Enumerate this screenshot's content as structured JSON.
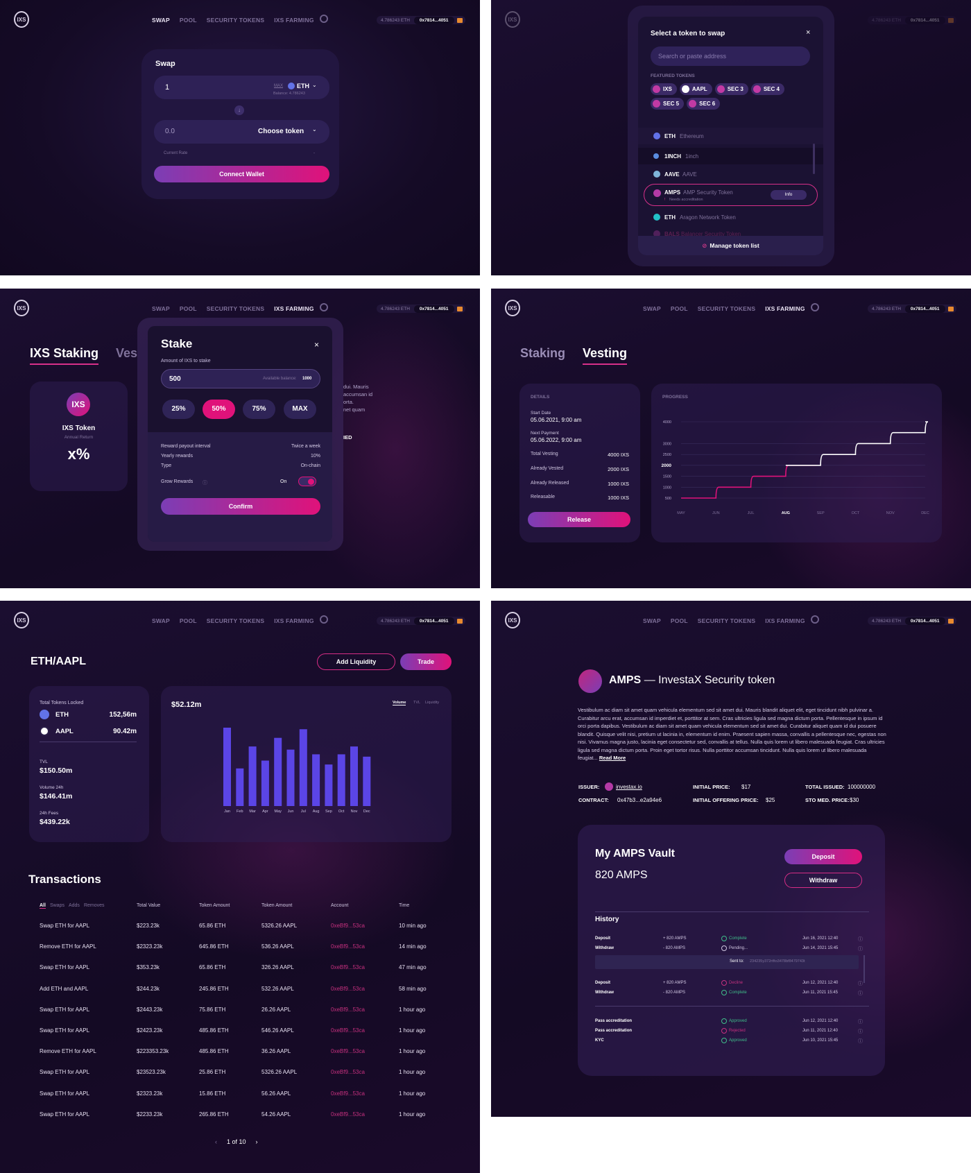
{
  "header": {
    "logo": "IXS",
    "nav": [
      "SWAP",
      "POOL",
      "SECURITY TOKENS",
      "IXS FARMING"
    ],
    "balance": "4.786243 ETH",
    "address": "0x7814...4051"
  },
  "swap": {
    "title": "Swap",
    "from_value": "1",
    "max_label": "MAX",
    "from_token": "ETH",
    "balance": "Balance: 4.786243",
    "to_value": "0.0",
    "choose_token": "Choose token",
    "current_rate": "Current Rate",
    "rate_value": "-",
    "connect": "Connect Wallet"
  },
  "token_select": {
    "title": "Select a token to swap",
    "search_placeholder": "Search or paste address",
    "featured_label": "FEATURED TOKENS",
    "featured": [
      "IXS",
      "AAPL",
      "SEC 3",
      "SEC 4",
      "SEC 5",
      "SEC 6"
    ],
    "tokens": [
      {
        "symbol": "ETH",
        "name": "Ethereum"
      },
      {
        "symbol": "1INCH",
        "name": "1inch"
      },
      {
        "symbol": "AAVE",
        "name": "AAVE"
      },
      {
        "symbol": "AMPS",
        "name": "AMP Security Token"
      },
      {
        "symbol": "ETH",
        "name": "Aragon Network Token"
      },
      {
        "symbol": "BALS",
        "name": "Balancer Security Token"
      }
    ],
    "accreditation": "Needs accreditation",
    "info_button": "Info",
    "manage": "Manage token list"
  },
  "staking": {
    "tab_staking": "IXS Staking",
    "tab_vesting_cut": "Ves",
    "token_name": "IXS Token",
    "annual_return": "Annual Return",
    "return_value": "x%",
    "bg_text": [
      "dui. Mauris",
      "accumsan id",
      "orta.",
      "net quam",
      "IED"
    ],
    "stake_title": "Stake",
    "amount_label": "Amount of IXS to stake",
    "amount_value": "500",
    "available_label": "Available balance:",
    "available_value": "1000",
    "percents": [
      "25%",
      "50%",
      "75%",
      "MAX"
    ],
    "details": [
      {
        "label": "Reward payout interval",
        "value": "Twice a week"
      },
      {
        "label": "Yearly rewards",
        "value": "10%"
      },
      {
        "label": "Type",
        "value": "On-chain"
      }
    ],
    "grow_label": "Grow Rewards",
    "grow_state": "On",
    "confirm": "Confirm"
  },
  "vesting": {
    "tab_staking": "Staking",
    "tab_vesting": "Vesting",
    "details_title": "DETAILS",
    "start_label": "Start Date",
    "start_value": "05.06.2021, 9:00 am",
    "next_label": "Next Payment",
    "next_value": "05.06.2022, 9:00 am",
    "rows": [
      {
        "label": "Total Vesting",
        "value": "4000 IXS"
      },
      {
        "label": "Already Vested",
        "value": "2000 IXS"
      },
      {
        "label": "Already Released",
        "value": "1000 IXS"
      },
      {
        "label": "Releasable",
        "value": "1000 IXS"
      }
    ],
    "release": "Release",
    "progress_title": "PROGRESS",
    "chart_data": {
      "type": "line",
      "x": [
        "MAY",
        "JUN",
        "JUL",
        "AUG",
        "SEP",
        "OCT",
        "NOV",
        "DEC"
      ],
      "y": [
        500,
        1000,
        1500,
        2000,
        2500,
        3000,
        3500,
        4000
      ],
      "yticks": [
        "4000",
        "3000",
        "2500",
        "2000",
        "1500",
        "1000",
        "500"
      ],
      "highlight_x": "AUG",
      "highlight_y": "2000",
      "ylim": [
        500,
        4000
      ]
    }
  },
  "pool": {
    "pair": "ETH/AAPL",
    "add_liquidity": "Add Liquidity",
    "trade": "Trade",
    "total_locked": "Total Tokens Locked",
    "locked": [
      {
        "token": "ETH",
        "value": "152,56m"
      },
      {
        "token": "AAPL",
        "value": "90.42m"
      }
    ],
    "tvl_label": "TVL",
    "tvl_value": "$150.50m",
    "vol_label": "Volume 24h",
    "vol_value": "$146.41m",
    "fees_label": "24h Fees",
    "fees_value": "$439.22k",
    "chart_value": "$52.12m",
    "chart_tabs": [
      "Volume",
      "TVL",
      "Liquidity"
    ],
    "chart_data": {
      "type": "bar",
      "categories": [
        "Jan",
        "Feb",
        "Mar",
        "Apr",
        "May",
        "Jun",
        "Jul",
        "Aug",
        "Sep",
        "Oct",
        "Nov",
        "Dec"
      ],
      "values": [
        100,
        48,
        76,
        58,
        87,
        72,
        98,
        66,
        53,
        66,
        76,
        63
      ],
      "ylim": [
        0,
        100
      ]
    },
    "transactions_title": "Transactions",
    "tx_filters": [
      "All",
      "Swaps",
      "Adds",
      "Removes"
    ],
    "tx_headers": [
      "Total Value",
      "Token Amount",
      "Token Amount",
      "Account",
      "Time"
    ],
    "tx_rows": [
      [
        "Swap ETH for AAPL",
        "$223.23k",
        "65.86 ETH",
        "5326.26 AAPL",
        "0xeBf9...53ca",
        "10 min ago"
      ],
      [
        "Remove ETH for AAPL",
        "$2323.23k",
        "645.86 ETH",
        "536.26 AAPL",
        "0xeBf9...53ca",
        "14 min ago"
      ],
      [
        "Swap ETH for AAPL",
        "$353.23k",
        "65.86 ETH",
        "326.26 AAPL",
        "0xeBf9...53ca",
        "47 min ago"
      ],
      [
        "Add ETH and AAPL",
        "$244.23k",
        "245.86 ETH",
        "532.26 AAPL",
        "0xeBf9...53ca",
        "58 min ago"
      ],
      [
        "Swap ETH for AAPL",
        "$2443.23k",
        "75.86 ETH",
        "26.26 AAPL",
        "0xeBf9...53ca",
        "1 hour ago"
      ],
      [
        "Swap ETH for AAPL",
        "$2423.23k",
        "485.86 ETH",
        "546.26 AAPL",
        "0xeBf9...53ca",
        "1 hour ago"
      ],
      [
        "Remove ETH for AAPL",
        "$223353.23k",
        "485.86 ETH",
        "36.26 AAPL",
        "0xeBf9...53ca",
        "1 hour ago"
      ],
      [
        "Swap ETH for AAPL",
        "$23523.23k",
        "25.86 ETH",
        "5326.26 AAPL",
        "0xeBf9...53ca",
        "1 hour ago"
      ],
      [
        "Swap ETH for AAPL",
        "$2323.23k",
        "15.86 ETH",
        "56.26 AAPL",
        "0xeBf9...53ca",
        "1 hour ago"
      ],
      [
        "Swap ETH for AAPL",
        "$2233.23k",
        "265.86 ETH",
        "54.26 AAPL",
        "0xeBf9...53ca",
        "1 hour ago"
      ]
    ],
    "pagination": "1 of 10"
  },
  "amps": {
    "title_bold": "AMPS",
    "title_rest": "— InvestaX Security token",
    "description": "Vestibulum ac diam sit amet quam vehicula elementum sed sit amet dui. Mauris blandit aliquet elit, eget tincidunt nibh pulvinar a. Curabitur arcu erat, accumsan id imperdiet et, porttitor at sem. Cras ultricies ligula sed magna dictum porta. Pellentesque in ipsum id orci porta dapibus. Vestibulum ac diam sit amet quam vehicula elementum sed sit amet dui. Curabitur aliquet quam id dui posuere blandit. Quisque velit nisi, pretium ut lacinia in, elementum id enim. Praesent sapien massa, convallis a pellentesque nec, egestas non nisi. Vivamus magna justo, lacinia eget consectetur sed, convallis at tellus. Nulla quis lorem ut libero malesuada feugiat. Cras ultricies ligula sed magna dictum porta. Proin eget tortor risus. Nulla porttitor accumsan tincidunt. Nulla quis lorem ut libero malesuada feugiat...",
    "read_more": "Read More",
    "issuer_label": "ISSUER:",
    "issuer_value": "investax.io",
    "contract_label": "CONTRACT:",
    "contract_value": "0x47b3...e2a94e6",
    "initial_price_label": "INITIAL PRICE:",
    "initial_price_value": "$17",
    "offering_label": "INITIAL OFFERING PRICE:",
    "offering_value": "$25",
    "issued_label": "TOTAL ISSUED:",
    "issued_value": "100000000",
    "sto_label": "STO MED. PRICE:",
    "sto_value": "$30",
    "vault_title": "My AMPS Vault",
    "vault_amount": "820 AMPS",
    "deposit": "Deposit",
    "withdraw": "Withdraw",
    "history_title": "History",
    "history": [
      {
        "type": "Deposit",
        "amount": "+ 820 AMPS",
        "status": "Complete",
        "date": "Jun 16, 2021 12:40"
      },
      {
        "type": "Withdraw",
        "amount": "- 820 AMPS",
        "status": "Pending...",
        "date": "Jun 14, 2021 15:45"
      },
      {
        "type": "Deposit",
        "amount": "+ 820 AMPS",
        "status": "Decline",
        "date": "Jun 12, 2021 12:40"
      },
      {
        "type": "Withdraw",
        "amount": "- 820 AMPS",
        "status": "Complete",
        "date": "Jun 11, 2021 15:45"
      }
    ],
    "sent_label": "Sent to:",
    "sent_value": "234235y372rtfto3478bf8479743t",
    "accreditation": [
      {
        "type": "Pass accreditation",
        "status": "Approved",
        "date": "Jun 12, 2021 12:40"
      },
      {
        "type": "Pass accreditation",
        "status": "Rejected",
        "date": "Jun 11, 2021 12:40"
      },
      {
        "type": "KYC",
        "status": "Approved",
        "date": "Jun 10, 2021 15:45"
      }
    ]
  },
  "colors": {
    "accent": "#e0127a",
    "purple": "#7b3eb5",
    "bar": "#5b45e6",
    "bg": "#170c29"
  }
}
